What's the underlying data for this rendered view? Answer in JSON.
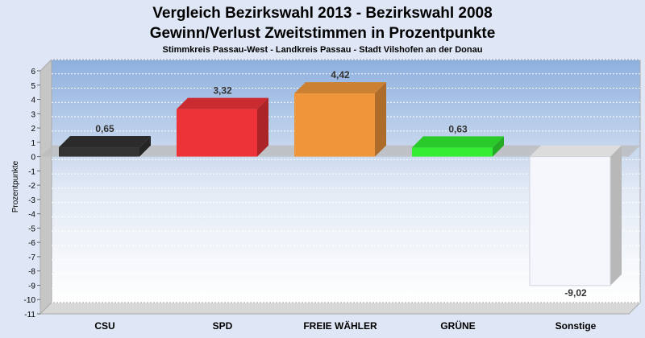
{
  "chart_data": {
    "type": "bar",
    "title": "Vergleich Bezirkswahl 2013 - Bezirkswahl 2008",
    "subtitle": "Gewinn/Verlust Zweitstimmen in Prozentpunkte",
    "subsubtitle": "Stimmkreis Passau-West - Landkreis Passau - Stadt Vilshofen an der Donau",
    "ylabel": "Prozentpunkte",
    "xlabel": "",
    "ylim": [
      -11,
      6
    ],
    "yticks": [
      6,
      5,
      4,
      3,
      2,
      1,
      0,
      -1,
      -2,
      -3,
      -4,
      -5,
      -6,
      -7,
      -8,
      -9,
      -10,
      -11
    ],
    "grid": true,
    "categories": [
      "CSU",
      "SPD",
      "FREIE WÄHLER",
      "GRÜNE",
      "Sonstige"
    ],
    "values": [
      0.65,
      3.32,
      4.42,
      0.63,
      -9.02
    ],
    "value_labels": [
      "0,65",
      "3,32",
      "4,42",
      "0,63",
      "-9,02"
    ],
    "colors": [
      "#333333",
      "#ee3338",
      "#f0963a",
      "#33ee33",
      "#f5f7fc"
    ]
  }
}
